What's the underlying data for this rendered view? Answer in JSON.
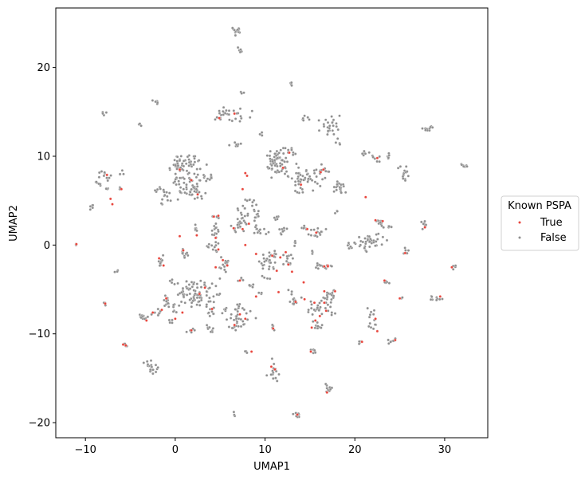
{
  "chart_data": {
    "type": "scatter",
    "xlabel": "UMAP1",
    "ylabel": "UMAP2",
    "xlim": [
      -13.3,
      34.8
    ],
    "ylim": [
      -21.7,
      26.7
    ],
    "xticks": [
      -10,
      0,
      10,
      20,
      30
    ],
    "yticks": [
      -20,
      -10,
      0,
      10,
      20
    ],
    "xtick_labels": [
      "−10",
      "0",
      "10",
      "20",
      "30"
    ],
    "ytick_labels": [
      "−20",
      "−10",
      "0",
      "10",
      "20"
    ],
    "grid": false,
    "legend": {
      "title": "Known PSPA",
      "placement": "outside-right",
      "entries": [
        "True",
        "False"
      ]
    },
    "colors": {
      "True": "#e8453c",
      "False": "#8f8f8f"
    },
    "series": [
      {
        "name": "False",
        "clusters": [
          [
            6.8,
            24.1,
            0.3,
            0.3,
            14
          ],
          [
            7.2,
            21.9,
            0.15,
            0.15,
            5
          ],
          [
            -2,
            16.1,
            0.2,
            0.2,
            6
          ],
          [
            -8,
            14.7,
            0.2,
            0.2,
            4
          ],
          [
            -4,
            13.5,
            0.15,
            0.15,
            3
          ],
          [
            6.5,
            14.8,
            0.9,
            0.4,
            22
          ],
          [
            4.8,
            14.4,
            0.3,
            0.2,
            6
          ],
          [
            7.5,
            17.2,
            0.1,
            0.1,
            3
          ],
          [
            13,
            18.1,
            0.2,
            0.1,
            4
          ],
          [
            9.5,
            12.5,
            0.15,
            0.15,
            3
          ],
          [
            14.3,
            14.2,
            0.3,
            0.2,
            6
          ],
          [
            17.3,
            13.5,
            0.6,
            0.6,
            25
          ],
          [
            18.2,
            11.4,
            0.2,
            0.2,
            3
          ],
          [
            6.8,
            11.4,
            0.3,
            0.15,
            8
          ],
          [
            11.5,
            9.2,
            0.7,
            0.7,
            60
          ],
          [
            12.8,
            10.3,
            0.3,
            0.3,
            8
          ],
          [
            14.8,
            7.6,
            0.9,
            0.6,
            35
          ],
          [
            13.8,
            6.8,
            0.3,
            0.6,
            12
          ],
          [
            16.5,
            8.4,
            0.4,
            0.3,
            10
          ],
          [
            18.3,
            6.5,
            0.4,
            0.4,
            20
          ],
          [
            21.2,
            10.3,
            0.2,
            0.2,
            6
          ],
          [
            22.1,
            9.8,
            0.3,
            0.2,
            6
          ],
          [
            23.8,
            9.9,
            0.2,
            0.2,
            6
          ],
          [
            25.6,
            8,
            0.2,
            0.4,
            12
          ],
          [
            27.9,
            13.1,
            0.4,
            0.15,
            10
          ],
          [
            32.1,
            8.9,
            0.3,
            0.15,
            8
          ],
          [
            24.7,
            8.6,
            0.15,
            0.15,
            2
          ],
          [
            -9.3,
            4.3,
            0.2,
            0.2,
            5
          ],
          [
            -7.9,
            7.7,
            0.4,
            0.3,
            10
          ],
          [
            -6,
            8.1,
            0.2,
            0.2,
            4
          ],
          [
            -8.8,
            6.9,
            0.3,
            0.2,
            6
          ],
          [
            -7.5,
            6.4,
            0.2,
            0.2,
            4
          ],
          [
            -6.2,
            6.3,
            0.15,
            0.15,
            3
          ],
          [
            -2.2,
            6.2,
            0.3,
            0.2,
            6
          ],
          [
            1.5,
            9.3,
            0.8,
            0.5,
            30
          ],
          [
            1.5,
            7,
            1.2,
            0.8,
            60
          ],
          [
            -1.2,
            5.5,
            0.3,
            0.5,
            12
          ],
          [
            0.2,
            8.8,
            0.6,
            0.3,
            15
          ],
          [
            2.5,
            5.9,
            0.4,
            0.4,
            12
          ],
          [
            4,
            7.7,
            0.2,
            0.2,
            5
          ],
          [
            8.2,
            4,
            0.5,
            0.8,
            30
          ],
          [
            7.5,
            2.5,
            0.3,
            0.5,
            12
          ],
          [
            9.5,
            1.5,
            0.4,
            0.4,
            12
          ],
          [
            10.8,
            -1.2,
            0.5,
            0.5,
            18
          ],
          [
            10.2,
            -2.2,
            0.5,
            0.4,
            14
          ],
          [
            12,
            1.5,
            0.3,
            0.3,
            8
          ],
          [
            12.6,
            -1.7,
            0.4,
            0.4,
            12
          ],
          [
            11.3,
            3,
            0.2,
            0.2,
            5
          ],
          [
            14.3,
            2,
            0.2,
            0.2,
            5
          ],
          [
            15.8,
            1.3,
            0.6,
            0.3,
            15
          ],
          [
            16.5,
            -2.4,
            0.5,
            0.2,
            14
          ],
          [
            13.3,
            0.2,
            0.2,
            0.2,
            4
          ],
          [
            15.3,
            -0.9,
            0.15,
            0.15,
            3
          ],
          [
            18,
            3.8,
            0.15,
            0.15,
            3
          ],
          [
            19.6,
            -0.1,
            0.3,
            0.2,
            8
          ],
          [
            21.5,
            0.6,
            0.8,
            0.4,
            30
          ],
          [
            22.8,
            2.5,
            0.4,
            0.3,
            12
          ],
          [
            24,
            2.1,
            0.2,
            0.2,
            5
          ],
          [
            25.8,
            -0.6,
            0.2,
            0.2,
            5
          ],
          [
            27.9,
            2.2,
            0.2,
            0.2,
            5
          ],
          [
            27.5,
            2.6,
            0.15,
            0.15,
            3
          ],
          [
            21,
            -0.3,
            0.2,
            0.2,
            4
          ],
          [
            22,
            0.2,
            0.2,
            0.2,
            4
          ],
          [
            4.3,
            1.5,
            0.4,
            0.5,
            14
          ],
          [
            2.2,
            1.7,
            0.3,
            0.2,
            6
          ],
          [
            4.5,
            3.2,
            0.3,
            0.15,
            6
          ],
          [
            6.8,
            1.9,
            0.3,
            0.2,
            6
          ],
          [
            5.5,
            -2.5,
            0.3,
            0.5,
            10
          ],
          [
            4.5,
            -0.4,
            0.3,
            0.3,
            8
          ],
          [
            3.8,
            -0.1,
            0.2,
            0.2,
            5
          ],
          [
            0.8,
            -1,
            0.3,
            0.4,
            10
          ],
          [
            -1.5,
            -2,
            0.3,
            0.5,
            10
          ],
          [
            -6.4,
            -2.8,
            0.15,
            0.15,
            3
          ],
          [
            -11,
            0,
            0.1,
            0.15,
            3
          ],
          [
            2.7,
            -5.5,
            1.1,
            0.7,
            70
          ],
          [
            1.5,
            -4.5,
            0.4,
            0.3,
            10
          ],
          [
            4,
            -7.5,
            0.3,
            0.3,
            8
          ],
          [
            3.7,
            -9.4,
            0.3,
            0.2,
            8
          ],
          [
            1.8,
            -9.6,
            0.3,
            0.15,
            6
          ],
          [
            0,
            -7.1,
            0.3,
            0.3,
            8
          ],
          [
            -0.5,
            -8.6,
            0.15,
            0.2,
            4
          ],
          [
            -1,
            -6.5,
            0.3,
            0.4,
            10
          ],
          [
            -3.6,
            -8.1,
            0.4,
            0.2,
            14
          ],
          [
            -2.2,
            -7.7,
            0.3,
            0.2,
            8
          ],
          [
            -7.9,
            -6.6,
            0.15,
            0.15,
            3
          ],
          [
            -5.5,
            -11.3,
            0.2,
            0.15,
            6
          ],
          [
            -2.8,
            -13.8,
            0.4,
            0.4,
            18
          ],
          [
            7,
            -8,
            0.7,
            0.7,
            35
          ],
          [
            6.4,
            -9.4,
            0.15,
            0.2,
            4
          ],
          [
            5.5,
            -7.2,
            0.2,
            0.2,
            5
          ],
          [
            7.8,
            -12,
            0.15,
            0.1,
            3
          ],
          [
            8.5,
            -4.6,
            0.2,
            0.2,
            5
          ],
          [
            9.5,
            -5.5,
            0.15,
            0.15,
            3
          ],
          [
            10.9,
            -9.3,
            0.2,
            0.2,
            5
          ],
          [
            11,
            -14.5,
            0.3,
            0.6,
            14
          ],
          [
            13.5,
            -6.4,
            0.4,
            0.3,
            10
          ],
          [
            16.2,
            -6.8,
            0.8,
            0.5,
            30
          ],
          [
            17.3,
            -5.6,
            0.5,
            0.3,
            14
          ],
          [
            15.8,
            -9,
            0.3,
            0.4,
            10
          ],
          [
            17,
            -16,
            0.2,
            0.4,
            10
          ],
          [
            15.3,
            -12,
            0.3,
            0.15,
            6
          ],
          [
            13.6,
            -19.1,
            0.3,
            0.2,
            10
          ],
          [
            20.5,
            -11,
            0.2,
            0.15,
            5
          ],
          [
            22,
            -8.3,
            0.3,
            0.6,
            14
          ],
          [
            24.3,
            -10.8,
            0.3,
            0.3,
            8
          ],
          [
            25.2,
            -6,
            0.1,
            0.1,
            2
          ],
          [
            28.8,
            -6,
            0.5,
            0.2,
            10
          ],
          [
            31,
            -2.5,
            0.15,
            0.15,
            4
          ],
          [
            23.5,
            -4.2,
            0.2,
            0.2,
            5
          ],
          [
            6.6,
            -19,
            0.1,
            0.1,
            3
          ],
          [
            12.9,
            -5.3,
            0.15,
            0.15,
            3
          ],
          [
            7.3,
            -3.8,
            0.2,
            0.2,
            4
          ],
          [
            10,
            -3.8,
            0.2,
            0.2,
            4
          ],
          [
            -0.3,
            -4.2,
            0.2,
            0.2,
            4
          ],
          [
            5.8,
            -1.8,
            0.2,
            0.2,
            4
          ]
        ]
      },
      {
        "name": "True",
        "points": [
          [
            6.6,
            14.8
          ],
          [
            4.9,
            14.3
          ],
          [
            7.8,
            8.1
          ],
          [
            8,
            7.8
          ],
          [
            7.5,
            6.3
          ],
          [
            12.7,
            10.4
          ],
          [
            12,
            8.7
          ],
          [
            16.5,
            8.5
          ],
          [
            14,
            6.8
          ],
          [
            16.2,
            8.2
          ],
          [
            -7.6,
            7.9
          ],
          [
            -7.2,
            5.2
          ],
          [
            -7,
            4.6
          ],
          [
            -6,
            6.3
          ],
          [
            0.5,
            8.5
          ],
          [
            1.8,
            7.3
          ],
          [
            2.5,
            5.7
          ],
          [
            4.8,
            3.3
          ],
          [
            4.3,
            3.2
          ],
          [
            2.4,
            1.1
          ],
          [
            4.5,
            0.8
          ],
          [
            7.5,
            1.8
          ],
          [
            8.2,
            2.4
          ],
          [
            6.5,
            1.9
          ],
          [
            7.8,
            0
          ],
          [
            5.3,
            -1.7
          ],
          [
            4.8,
            -0.5
          ],
          [
            5.8,
            -2.3
          ],
          [
            4.5,
            -2.5
          ],
          [
            9,
            -1
          ],
          [
            10.8,
            -1.2
          ],
          [
            11.7,
            -1.4
          ],
          [
            11.3,
            -2.9
          ],
          [
            12.3,
            -0.8
          ],
          [
            12.6,
            -2.2
          ],
          [
            14.7,
            1.8
          ],
          [
            15.7,
            1.4
          ],
          [
            16.6,
            -2.4
          ],
          [
            17,
            -2.3
          ],
          [
            21.2,
            5.4
          ],
          [
            22.5,
            9.8
          ],
          [
            22.3,
            2.8
          ],
          [
            23.1,
            2.7
          ],
          [
            27.8,
            2
          ],
          [
            25.6,
            -0.9
          ],
          [
            30.8,
            -2.5
          ],
          [
            29.5,
            -5.8
          ],
          [
            -11,
            0.1
          ],
          [
            -1.8,
            -1.5
          ],
          [
            -1.3,
            -2.3
          ],
          [
            0.9,
            -0.6
          ],
          [
            -7.8,
            -6.6
          ],
          [
            -2.5,
            -7.6
          ],
          [
            -1.5,
            -7.3
          ],
          [
            -1,
            -6
          ],
          [
            -3.2,
            -8.5
          ],
          [
            0,
            -8.3
          ],
          [
            0.8,
            -7.6
          ],
          [
            2.7,
            -5.5
          ],
          [
            1.8,
            -9.6
          ],
          [
            3.3,
            -4.8
          ],
          [
            4.1,
            -7.2
          ],
          [
            6.6,
            -9
          ],
          [
            7.8,
            -8.3
          ],
          [
            9,
            -5.8
          ],
          [
            10.9,
            -9.4
          ],
          [
            -5.5,
            -11.3
          ],
          [
            -5.8,
            -11.2
          ],
          [
            10.7,
            -13.7
          ],
          [
            11.1,
            -14
          ],
          [
            13.4,
            -6.4
          ],
          [
            14.4,
            -6.1
          ],
          [
            15.5,
            -6.5
          ],
          [
            15.6,
            -8.5
          ],
          [
            16.1,
            -8
          ],
          [
            15.2,
            -9.3
          ],
          [
            16.8,
            -7.4
          ],
          [
            16.6,
            -5.2
          ],
          [
            17.8,
            -5.2
          ],
          [
            16.6,
            -6.5
          ],
          [
            17,
            -2.4
          ],
          [
            15.1,
            -12
          ],
          [
            16.9,
            -16.6
          ],
          [
            13.6,
            -19.1
          ],
          [
            20.8,
            -10.9
          ],
          [
            22.5,
            -9.7
          ],
          [
            22.3,
            -8.3
          ],
          [
            24.5,
            -10.7
          ],
          [
            23.3,
            -4
          ],
          [
            25,
            -6
          ],
          [
            11.5,
            -5.3
          ],
          [
            7.2,
            -7.8
          ],
          [
            7.2,
            -4
          ],
          [
            13,
            -3
          ],
          [
            14.3,
            -4.2
          ],
          [
            8.5,
            -12
          ],
          [
            0.5,
            1
          ]
        ]
      }
    ]
  }
}
